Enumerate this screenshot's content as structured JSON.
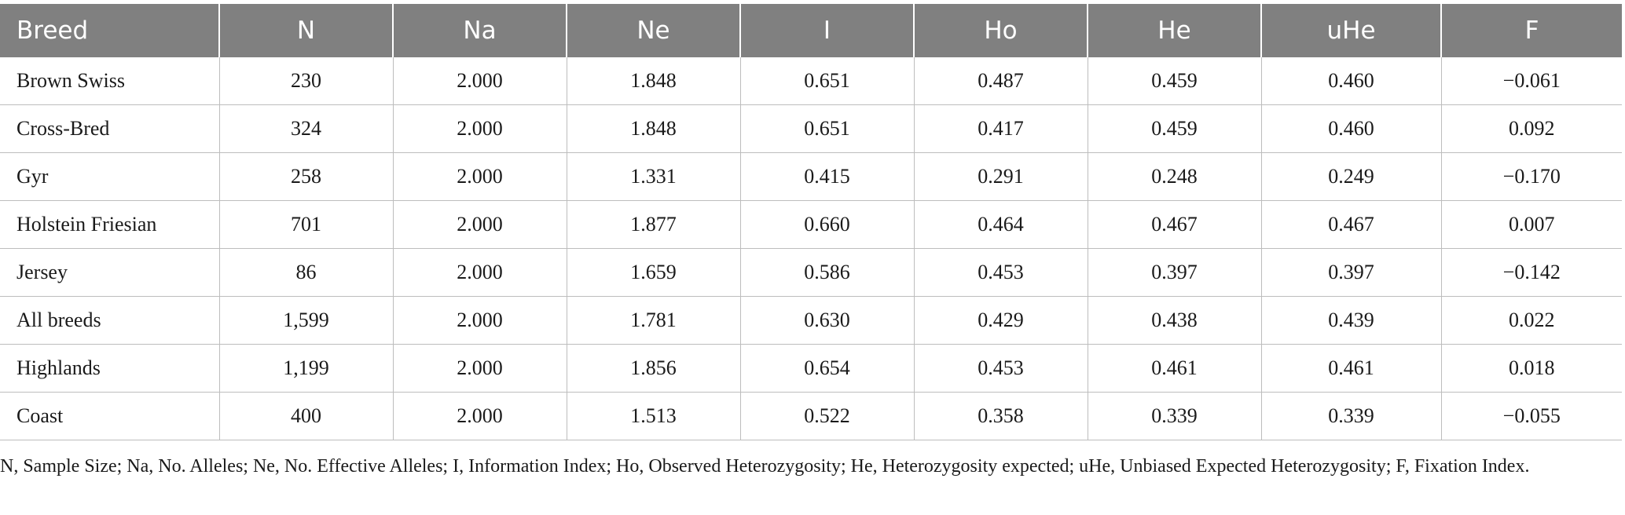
{
  "table": {
    "headers": [
      "Breed",
      "N",
      "Na",
      "Ne",
      "I",
      "Ho",
      "He",
      "uHe",
      "F"
    ],
    "rows": [
      [
        "Brown Swiss",
        "230",
        "2.000",
        "1.848",
        "0.651",
        "0.487",
        "0.459",
        "0.460",
        "−0.061"
      ],
      [
        "Cross-Bred",
        "324",
        "2.000",
        "1.848",
        "0.651",
        "0.417",
        "0.459",
        "0.460",
        "0.092"
      ],
      [
        "Gyr",
        "258",
        "2.000",
        "1.331",
        "0.415",
        "0.291",
        "0.248",
        "0.249",
        "−0.170"
      ],
      [
        "Holstein Friesian",
        "701",
        "2.000",
        "1.877",
        "0.660",
        "0.464",
        "0.467",
        "0.467",
        "0.007"
      ],
      [
        "Jersey",
        "86",
        "2.000",
        "1.659",
        "0.586",
        "0.453",
        "0.397",
        "0.397",
        "−0.142"
      ],
      [
        "All breeds",
        "1,599",
        "2.000",
        "1.781",
        "0.630",
        "0.429",
        "0.438",
        "0.439",
        "0.022"
      ],
      [
        "Highlands",
        "1,199",
        "2.000",
        "1.856",
        "0.654",
        "0.453",
        "0.461",
        "0.461",
        "0.018"
      ],
      [
        "Coast",
        "400",
        "2.000",
        "1.513",
        "0.522",
        "0.358",
        "0.339",
        "0.339",
        "−0.055"
      ]
    ]
  },
  "footnote": "N, Sample Size; Na, No. Alleles; Ne, No. Effective Alleles; I, Information Index; Ho, Observed Heterozygosity; He, Heterozygosity expected; uHe, Unbiased Expected Heterozygosity; F, Fixation Index.",
  "colors": {
    "header_background": "#808080",
    "header_text": "#ffffff",
    "grid_lines": "#bdbdbd"
  }
}
